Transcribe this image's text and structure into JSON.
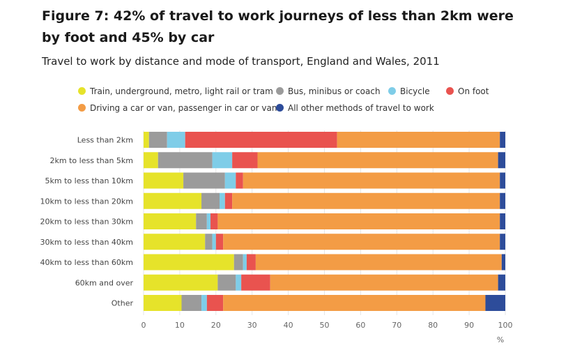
{
  "title": "Figure 7: 42% of travel to work journeys of less than 2km were by foot and 45% by car",
  "subtitle": "Travel to work by distance and mode of transport, England and Wales, 2011",
  "colors": {
    "train": "#e6e32a",
    "bus": "#9b9b9b",
    "bicycle": "#7fcde8",
    "foot": "#e9534f",
    "car": "#f39c45",
    "other": "#2d4c9a"
  },
  "legend": [
    {
      "label": "Train, underground, metro, light rail or tram",
      "color": "#e6e32a"
    },
    {
      "label": "Bus, minibus or coach",
      "color": "#9b9b9b"
    },
    {
      "label": "Bicycle",
      "color": "#7fcde8"
    },
    {
      "label": "On foot",
      "color": "#e9534f"
    },
    {
      "label": "Driving a car or van, passenger in car or van",
      "color": "#f39c45"
    },
    {
      "label": "All other methods of travel to work",
      "color": "#2d4c9a"
    }
  ],
  "chart_data": {
    "type": "bar",
    "orientation": "horizontal",
    "stacked": true,
    "categories": [
      "Less than 2km",
      "2km to less than 5km",
      "5km to less than 10km",
      "10km to less than 20km",
      "20km to less than 30km",
      "30km to less than 40km",
      "40km to less than 60km",
      "60km and over",
      "Other"
    ],
    "series": [
      {
        "name": "Train, underground, metro, light rail or tram",
        "color": "#e6e32a",
        "values": [
          1.5,
          4,
          11,
          16,
          14.5,
          17,
          25,
          20.5,
          10.5
        ]
      },
      {
        "name": "Bus, minibus or coach",
        "color": "#9b9b9b",
        "values": [
          5,
          15,
          11.5,
          5,
          3,
          2,
          2.5,
          5,
          5.5
        ]
      },
      {
        "name": "Bicycle",
        "color": "#7fcde8",
        "values": [
          5,
          5.5,
          3,
          1.5,
          1,
          1,
          1,
          1.5,
          1.5
        ]
      },
      {
        "name": "On foot",
        "color": "#e9534f",
        "values": [
          42,
          7,
          2,
          2,
          2,
          2,
          2.5,
          8,
          4.5
        ]
      },
      {
        "name": "Driving a car or van, passenger in car or van",
        "color": "#f39c45",
        "values": [
          45,
          66.5,
          71,
          74,
          78,
          76.5,
          68,
          63,
          72.5
        ]
      },
      {
        "name": "All other methods of travel to work",
        "color": "#2d4c9a",
        "values": [
          1.5,
          2,
          1.5,
          1.5,
          1.5,
          1.5,
          1,
          2,
          5.5
        ]
      }
    ],
    "xlim": [
      0,
      100
    ],
    "xticks": [
      "0",
      "10",
      "20",
      "30",
      "40",
      "50",
      "60",
      "70",
      "80",
      "90",
      "100"
    ],
    "xlabel": "%",
    "grid": true,
    "legend_position": "top"
  }
}
